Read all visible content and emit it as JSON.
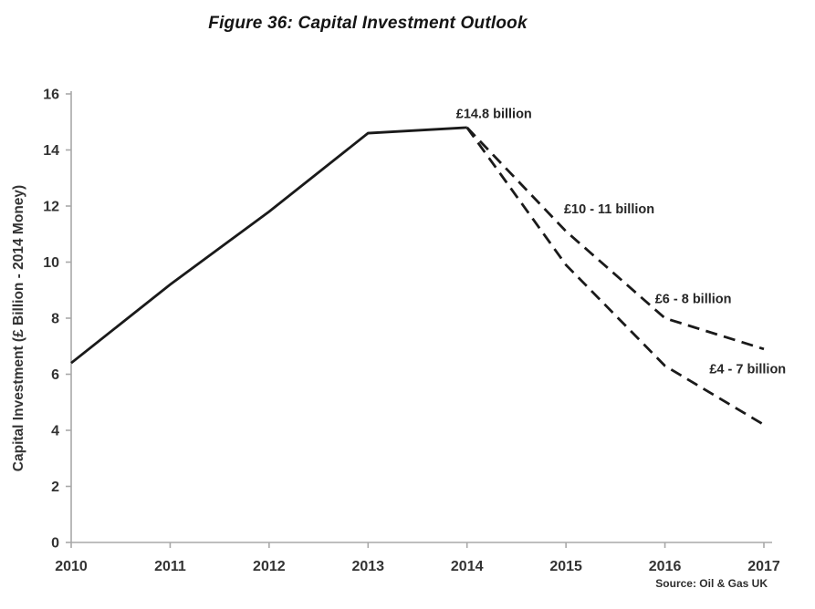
{
  "title": "Figure 36: Capital Investment Outlook",
  "source": "Source: Oil & Gas UK",
  "colors": {
    "line": "#1a1a1a",
    "axis": "#a8a8a8",
    "tick_text": "#333333",
    "annotation_text": "#262626"
  },
  "chart_data": {
    "type": "line",
    "title": "Figure 36: Capital Investment Outlook",
    "xlabel": "",
    "ylabel": "Capital Investment (£ Billion - 2014 Money)",
    "xlim": [
      2010,
      2017
    ],
    "ylim": [
      0,
      16
    ],
    "x_ticks": [
      2010,
      2011,
      2012,
      2013,
      2014,
      2015,
      2016,
      2017
    ],
    "y_ticks": [
      0,
      2,
      4,
      6,
      8,
      10,
      12,
      14,
      16
    ],
    "grid": false,
    "legend": "none",
    "series": [
      {
        "name": "historical-capital-investment",
        "style": "solid",
        "x": [
          2010,
          2011,
          2012,
          2013,
          2014
        ],
        "values": [
          6.4,
          9.2,
          11.8,
          14.6,
          14.8
        ]
      },
      {
        "name": "forecast-upper-bound",
        "style": "dashed",
        "x": [
          2014,
          2015,
          2016,
          2017
        ],
        "values": [
          14.8,
          11.1,
          8.0,
          6.9
        ]
      },
      {
        "name": "forecast-lower-bound",
        "style": "dashed",
        "x": [
          2014,
          2015,
          2016,
          2017
        ],
        "values": [
          14.8,
          9.9,
          6.3,
          4.2
        ]
      }
    ],
    "annotations": [
      {
        "text": "£14.8 billion",
        "x": 2013.89,
        "y": 15.3,
        "anchor": "start"
      },
      {
        "text": "£10 - 11 billion",
        "x": 2014.98,
        "y": 11.9,
        "anchor": "start"
      },
      {
        "text": "£6 - 8 billion",
        "x": 2015.9,
        "y": 8.7,
        "anchor": "start"
      },
      {
        "text": "£4 - 7 billion",
        "x": 2016.45,
        "y": 6.2,
        "anchor": "start"
      }
    ]
  }
}
